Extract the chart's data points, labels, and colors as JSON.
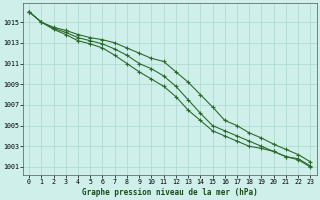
{
  "title": "Graphe pression niveau de la mer (hPa)",
  "x_ticks": [
    0,
    1,
    2,
    3,
    4,
    5,
    6,
    7,
    8,
    9,
    10,
    11,
    12,
    13,
    14,
    15,
    16,
    17,
    18,
    19,
    20,
    21,
    22,
    23
  ],
  "y_ticks": [
    1001,
    1003,
    1005,
    1007,
    1009,
    1011,
    1013,
    1015
  ],
  "xlim": [
    -0.5,
    23.5
  ],
  "ylim": [
    1000.2,
    1016.8
  ],
  "background_color": "#cff0ea",
  "grid_color": "#aad8cc",
  "line_color": "#2d6a2d",
  "line1": [
    1016.0,
    1015.0,
    1014.5,
    1014.2,
    1013.8,
    1013.5,
    1013.3,
    1013.0,
    1012.5,
    1012.0,
    1011.5,
    1011.2,
    1010.2,
    1009.2,
    1008.0,
    1006.8,
    1005.5,
    1005.0,
    1004.3,
    1003.8,
    1003.2,
    1002.7,
    1002.2,
    1001.5
  ],
  "line2": [
    1016.0,
    1015.0,
    1014.4,
    1014.0,
    1013.5,
    1013.2,
    1012.9,
    1012.4,
    1011.8,
    1011.0,
    1010.5,
    1009.8,
    1008.8,
    1007.5,
    1006.2,
    1005.0,
    1004.5,
    1004.0,
    1003.5,
    1003.0,
    1002.5,
    1002.0,
    1001.7,
    1001.0
  ],
  "line3": [
    1016.0,
    1015.0,
    1014.3,
    1013.8,
    1013.2,
    1012.9,
    1012.5,
    1011.8,
    1011.0,
    1010.2,
    1009.5,
    1008.8,
    1007.8,
    1006.5,
    1005.5,
    1004.5,
    1004.0,
    1003.5,
    1003.0,
    1002.8,
    1002.5,
    1002.0,
    1001.8,
    1001.1
  ]
}
